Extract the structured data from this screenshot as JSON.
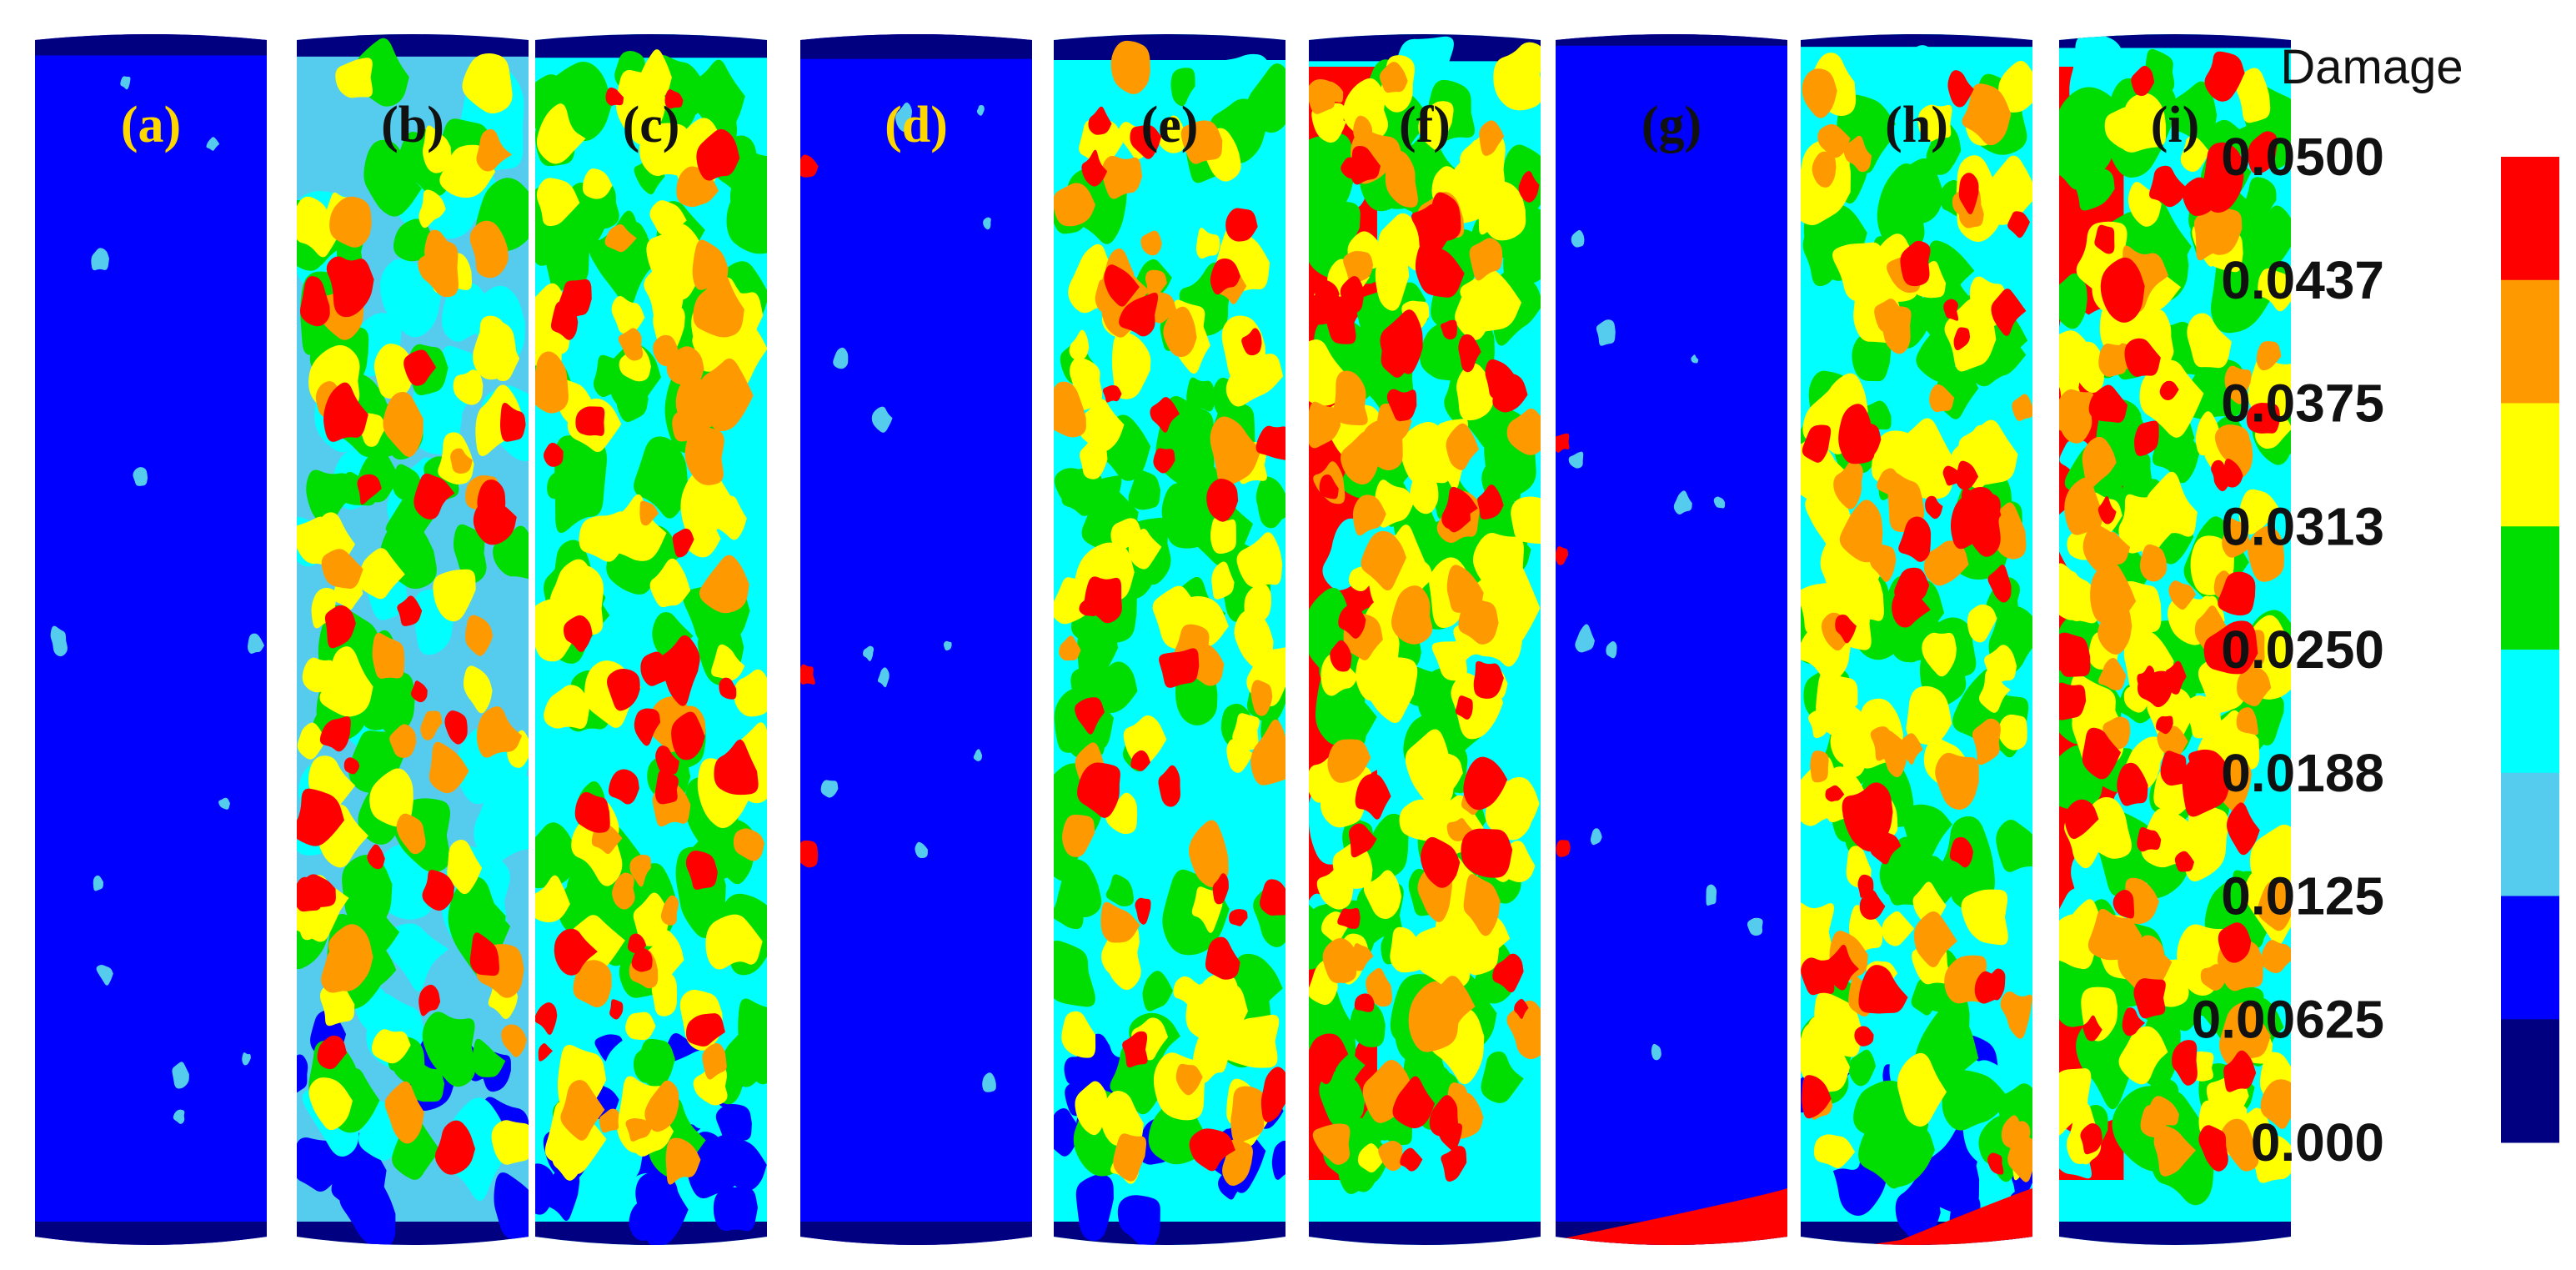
{
  "legend": {
    "title": "Damage",
    "ticks": [
      "0.0500",
      "0.0437",
      "0.0375",
      "0.0313",
      "0.0250",
      "0.0188",
      "0.0125",
      "0.00625",
      "0.000"
    ],
    "colors": [
      "#ff0000",
      "#ff9900",
      "#ffff00",
      "#00dd00",
      "#00ffff",
      "#55ccee",
      "#0000ff",
      "#000080"
    ]
  },
  "panels": [
    {
      "label": "(a)",
      "label_color": "#ffd700",
      "damage_level": 0.05
    },
    {
      "label": "(b)",
      "label_color": "#111111",
      "damage_level": 0.45
    },
    {
      "label": "(c)",
      "label_color": "#111111",
      "damage_level": 0.6
    },
    {
      "label": "(d)",
      "label_color": "#ffd700",
      "damage_level": 0.05
    },
    {
      "label": "(e)",
      "label_color": "#111111",
      "damage_level": 0.55
    },
    {
      "label": "(f)",
      "label_color": "#111111",
      "damage_level": 0.85
    },
    {
      "label": "(g)",
      "label_color": "#111111",
      "damage_level": 0.05
    },
    {
      "label": "(h)",
      "label_color": "#111111",
      "damage_level": 0.7
    },
    {
      "label": "(i)",
      "label_color": "#111111",
      "damage_level": 0.9
    }
  ]
}
